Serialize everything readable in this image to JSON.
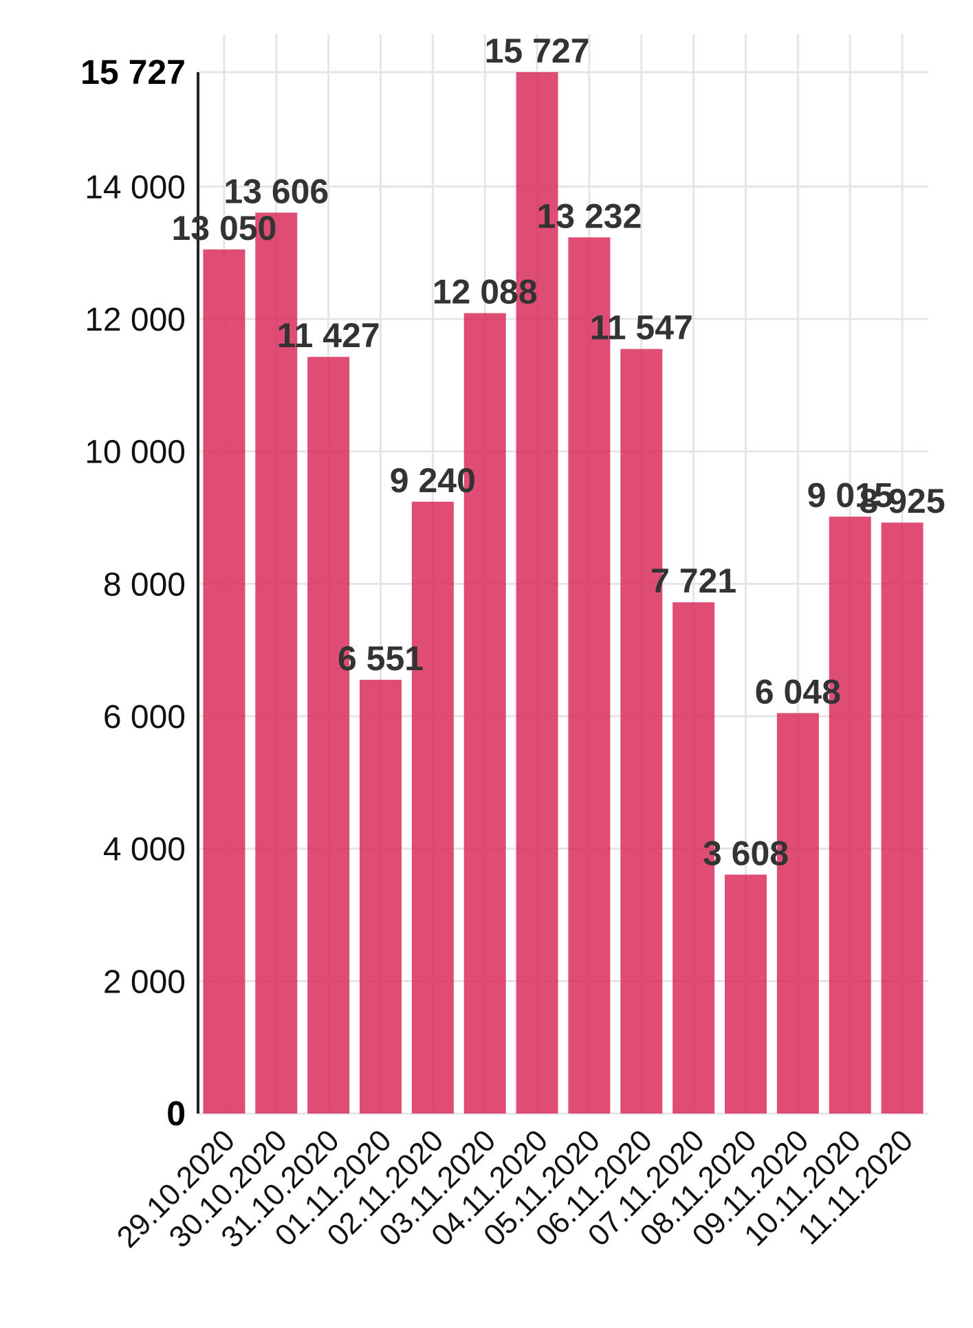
{
  "chart_data": {
    "type": "bar",
    "title": "",
    "xlabel": "",
    "ylabel": "",
    "categories": [
      "29.10.2020",
      "30.10.2020",
      "31.10.2020",
      "01.11.2020",
      "02.11.2020",
      "03.11.2020",
      "04.11.2020",
      "05.11.2020",
      "06.11.2020",
      "07.11.2020",
      "08.11.2020",
      "09.11.2020",
      "10.11.2020",
      "11.11.2020"
    ],
    "values": [
      13050,
      13606,
      11427,
      6551,
      9240,
      12088,
      15727,
      13232,
      11547,
      7721,
      3608,
      6048,
      9015,
      8925
    ],
    "value_labels": [
      "13 050",
      "13 606",
      "11 427",
      "6 551",
      "9 240",
      "12 088",
      "15 727",
      "13 232",
      "11 547",
      "7 721",
      "3 608",
      "6 048",
      "9 015",
      "8 925"
    ],
    "ylim": [
      0,
      15727
    ],
    "y_ticks": [
      {
        "value": 0,
        "label": "0",
        "bold": true
      },
      {
        "value": 2000,
        "label": "2 000",
        "bold": false
      },
      {
        "value": 4000,
        "label": "4 000",
        "bold": false
      },
      {
        "value": 6000,
        "label": "6 000",
        "bold": false
      },
      {
        "value": 8000,
        "label": "8 000",
        "bold": false
      },
      {
        "value": 10000,
        "label": "10 000",
        "bold": false
      },
      {
        "value": 12000,
        "label": "12 000",
        "bold": false
      },
      {
        "value": 14000,
        "label": "14 000",
        "bold": false
      },
      {
        "value": 15727,
        "label": "15 727",
        "bold": true
      }
    ],
    "grid": true,
    "legend": "none",
    "bar_color": "#d92e5d",
    "grid_color": "#e5e5e5",
    "axis_color": "#222222"
  }
}
